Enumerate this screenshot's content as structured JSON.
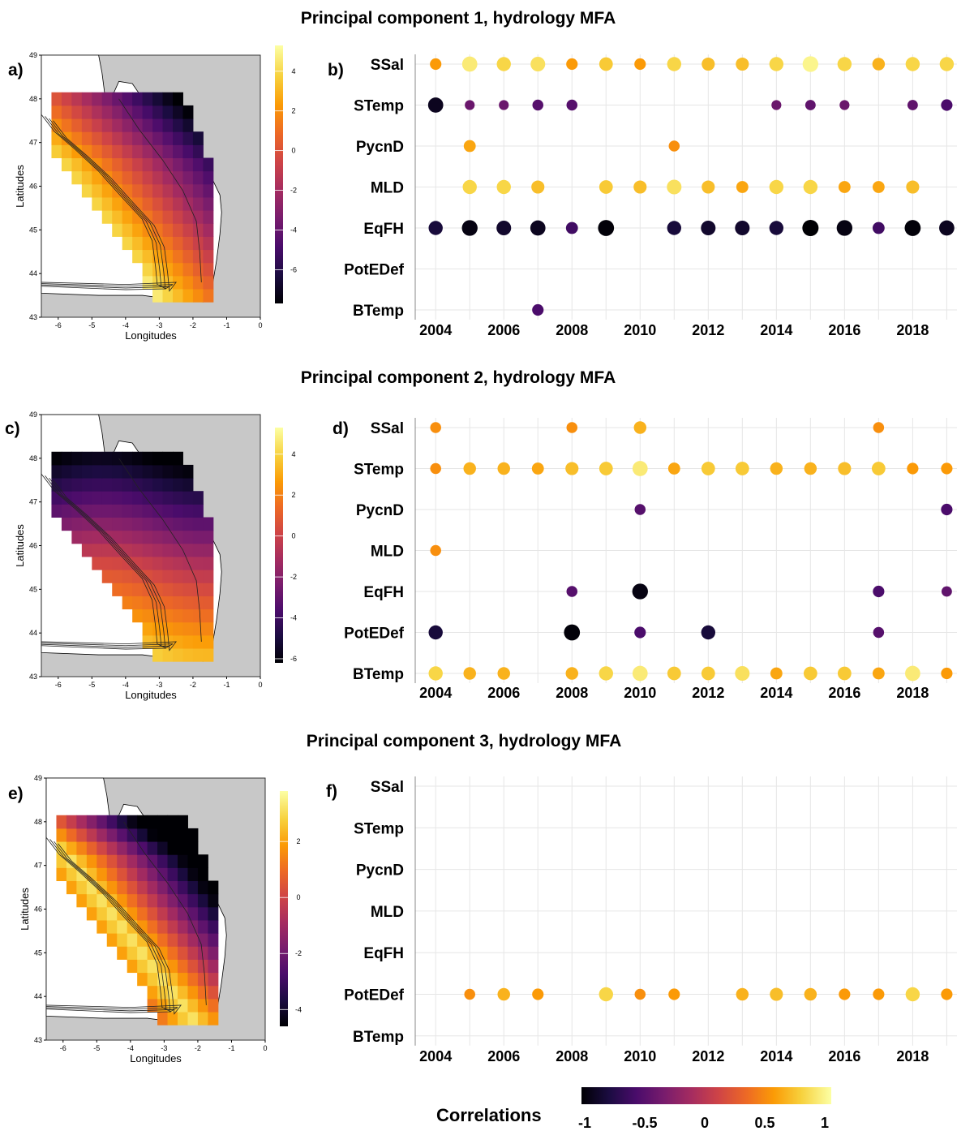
{
  "chart_data": [
    {
      "type": "heatmap",
      "panel": "a)",
      "title": "Principal component 1, hydrology MFA",
      "xlabel": "Longitudes",
      "ylabel": "Latitudes",
      "x_ticks": [
        "-6",
        "-5",
        "-4",
        "-3",
        "-2",
        "-1",
        "0"
      ],
      "y_ticks": [
        "43",
        "44",
        "45",
        "46",
        "47",
        "48",
        "49"
      ],
      "xlim": [
        -6.5,
        0
      ],
      "ylim": [
        43,
        49
      ],
      "colorbar_ticks": [
        "4",
        "2",
        "0",
        "-2",
        "-4",
        "-6"
      ],
      "colorbar_range": [
        -7.7,
        5.3
      ],
      "pattern": "high positive values offshore along the shelf edge, strong negative values near the coast"
    },
    {
      "type": "scatter",
      "panel": "b)",
      "variables": [
        "SSal",
        "STemp",
        "PycnD",
        "MLD",
        "EqFH",
        "PotEDef",
        "BTemp"
      ],
      "x_ticks": [
        "2004",
        "2006",
        "2008",
        "2010",
        "2012",
        "2014",
        "2016",
        "2018"
      ],
      "x": [
        2004,
        2005,
        2006,
        2007,
        2008,
        2009,
        2010,
        2011,
        2012,
        2013,
        2014,
        2015,
        2016,
        2017,
        2018,
        2019
      ],
      "xlim": [
        2003.4,
        2019.3
      ],
      "size_encodes": "absolute correlation",
      "color_encodes": "correlation",
      "points": {
        "SSal": [
          0.55,
          0.9,
          0.8,
          0.85,
          0.55,
          0.75,
          0.55,
          0.8,
          0.7,
          0.7,
          0.8,
          0.95,
          0.8,
          0.65,
          0.8,
          0.8
        ],
        "STemp": [
          -0.9,
          -0.4,
          -0.4,
          -0.5,
          -0.5,
          null,
          null,
          null,
          null,
          null,
          -0.4,
          -0.45,
          -0.4,
          null,
          -0.45,
          -0.55
        ],
        "PycnD": [
          null,
          0.6,
          null,
          null,
          null,
          null,
          null,
          0.5,
          null,
          null,
          null,
          null,
          null,
          null,
          null,
          null
        ],
        "MLD": [
          null,
          0.8,
          0.8,
          0.7,
          null,
          0.75,
          0.7,
          0.85,
          0.7,
          0.6,
          0.8,
          0.8,
          0.6,
          0.6,
          0.7,
          null
        ],
        "EqFH": [
          -0.8,
          -0.95,
          -0.85,
          -0.9,
          -0.6,
          -0.98,
          null,
          -0.8,
          -0.85,
          -0.85,
          -0.8,
          -1.0,
          -0.95,
          -0.6,
          -0.98,
          -0.9
        ],
        "PotEDef": [
          null,
          null,
          null,
          null,
          null,
          null,
          null,
          null,
          null,
          null,
          null,
          null,
          null,
          null,
          null,
          null
        ],
        "BTemp": [
          null,
          null,
          null,
          -0.55,
          null,
          null,
          null,
          null,
          null,
          null,
          null,
          null,
          null,
          null,
          null,
          null
        ]
      }
    },
    {
      "type": "heatmap",
      "panel": "c)",
      "title": "Principal component 2, hydrology MFA",
      "xlabel": "Longitudes",
      "ylabel": "Latitudes",
      "x_ticks": [
        "-6",
        "-5",
        "-4",
        "-3",
        "-2",
        "-1",
        "0"
      ],
      "y_ticks": [
        "43",
        "44",
        "45",
        "46",
        "47",
        "48",
        "49"
      ],
      "xlim": [
        -6.5,
        0
      ],
      "ylim": [
        43,
        49
      ],
      "colorbar_ticks": [
        "4",
        "2",
        "0",
        "-2",
        "-4",
        "-6"
      ],
      "colorbar_range": [
        -6.2,
        5.3
      ],
      "pattern": "strong negative values in the northern shelf, rising to high positive values toward the south"
    },
    {
      "type": "scatter",
      "panel": "d)",
      "variables": [
        "SSal",
        "STemp",
        "PycnD",
        "MLD",
        "EqFH",
        "PotEDef",
        "BTemp"
      ],
      "x_ticks": [
        "2004",
        "2006",
        "2008",
        "2010",
        "2012",
        "2014",
        "2016",
        "2018"
      ],
      "x": [
        2004,
        2005,
        2006,
        2007,
        2008,
        2009,
        2010,
        2011,
        2012,
        2013,
        2014,
        2015,
        2016,
        2017,
        2018,
        2019
      ],
      "xlim": [
        2003.4,
        2019.3
      ],
      "size_encodes": "absolute correlation",
      "color_encodes": "correlation",
      "points": {
        "SSal": [
          0.5,
          null,
          null,
          null,
          0.5,
          null,
          0.65,
          null,
          null,
          null,
          null,
          null,
          null,
          0.5,
          null,
          null
        ],
        "STemp": [
          0.5,
          0.65,
          0.65,
          0.6,
          0.7,
          0.75,
          0.9,
          0.6,
          0.75,
          0.75,
          0.65,
          0.65,
          0.7,
          0.75,
          0.55,
          0.55
        ],
        "PycnD": [
          null,
          null,
          null,
          null,
          null,
          null,
          -0.5,
          null,
          null,
          null,
          null,
          null,
          null,
          null,
          null,
          -0.55
        ],
        "MLD": [
          0.5,
          null,
          null,
          null,
          null,
          null,
          null,
          null,
          null,
          null,
          null,
          null,
          null,
          null,
          null,
          null
        ],
        "EqFH": [
          null,
          null,
          null,
          null,
          -0.5,
          null,
          -0.95,
          null,
          null,
          null,
          null,
          null,
          null,
          -0.55,
          null,
          -0.45
        ],
        "PotEDef": [
          -0.8,
          null,
          null,
          null,
          -0.98,
          null,
          -0.55,
          null,
          -0.8,
          null,
          null,
          null,
          null,
          -0.5,
          null,
          null
        ],
        "BTemp": [
          0.8,
          0.65,
          0.65,
          null,
          0.65,
          0.8,
          0.9,
          0.75,
          0.75,
          0.85,
          0.6,
          0.75,
          0.75,
          0.6,
          0.9,
          0.55
        ]
      }
    },
    {
      "type": "heatmap",
      "panel": "e)",
      "title": "Principal component 3, hydrology MFA",
      "xlabel": "Longitudes",
      "ylabel": "Latitudes",
      "x_ticks": [
        "-6",
        "-5",
        "-4",
        "-3",
        "-2",
        "-1",
        "0"
      ],
      "y_ticks": [
        "43",
        "44",
        "45",
        "46",
        "47",
        "48",
        "49"
      ],
      "xlim": [
        -6.5,
        0
      ],
      "ylim": [
        43,
        49
      ],
      "colorbar_ticks": [
        "2",
        "0",
        "-2",
        "-4"
      ],
      "colorbar_range": [
        -4.6,
        3.8
      ],
      "pattern": "positive values in the mid shelf, negative values offshore and near the northern coast"
    },
    {
      "type": "scatter",
      "panel": "f)",
      "variables": [
        "SSal",
        "STemp",
        "PycnD",
        "MLD",
        "EqFH",
        "PotEDef",
        "BTemp"
      ],
      "x_ticks": [
        "2004",
        "2006",
        "2008",
        "2010",
        "2012",
        "2014",
        "2016",
        "2018"
      ],
      "x": [
        2004,
        2005,
        2006,
        2007,
        2008,
        2009,
        2010,
        2011,
        2012,
        2013,
        2014,
        2015,
        2016,
        2017,
        2018,
        2019
      ],
      "xlim": [
        2003.4,
        2019.3
      ],
      "size_encodes": "absolute correlation",
      "color_encodes": "correlation",
      "points": {
        "SSal": [
          null,
          null,
          null,
          null,
          null,
          null,
          null,
          null,
          null,
          null,
          null,
          null,
          null,
          null,
          null,
          null
        ],
        "STemp": [
          null,
          null,
          null,
          null,
          null,
          null,
          null,
          null,
          null,
          null,
          null,
          null,
          null,
          null,
          null,
          null
        ],
        "PycnD": [
          null,
          null,
          null,
          null,
          null,
          null,
          null,
          null,
          null,
          null,
          null,
          null,
          null,
          null,
          null,
          null
        ],
        "MLD": [
          null,
          null,
          null,
          null,
          null,
          null,
          null,
          null,
          null,
          null,
          null,
          null,
          null,
          null,
          null,
          null
        ],
        "EqFH": [
          null,
          null,
          null,
          null,
          null,
          null,
          null,
          null,
          null,
          null,
          null,
          null,
          null,
          null,
          null,
          null
        ],
        "PotEDef": [
          null,
          0.5,
          0.65,
          0.55,
          null,
          0.8,
          0.5,
          0.55,
          null,
          0.65,
          0.7,
          0.65,
          0.55,
          0.55,
          0.8,
          0.55
        ],
        "BTemp": [
          null,
          null,
          null,
          null,
          null,
          null,
          null,
          null,
          null,
          null,
          null,
          null,
          null,
          null,
          null,
          null
        ]
      }
    }
  ],
  "legend": {
    "title": "Correlations",
    "ticks": [
      "-1",
      "-0.5",
      "0",
      "0.5",
      "1"
    ],
    "range": [
      -1,
      1
    ]
  },
  "colors": {
    "map_land": "#c8c8c8",
    "grid": "#e6e6e6",
    "inferno": [
      "#000004",
      "#1b0c41",
      "#4a0c6b",
      "#781c6d",
      "#a52c60",
      "#cf4446",
      "#ed6925",
      "#fb9b06",
      "#f7d13d",
      "#fcffa4"
    ]
  }
}
